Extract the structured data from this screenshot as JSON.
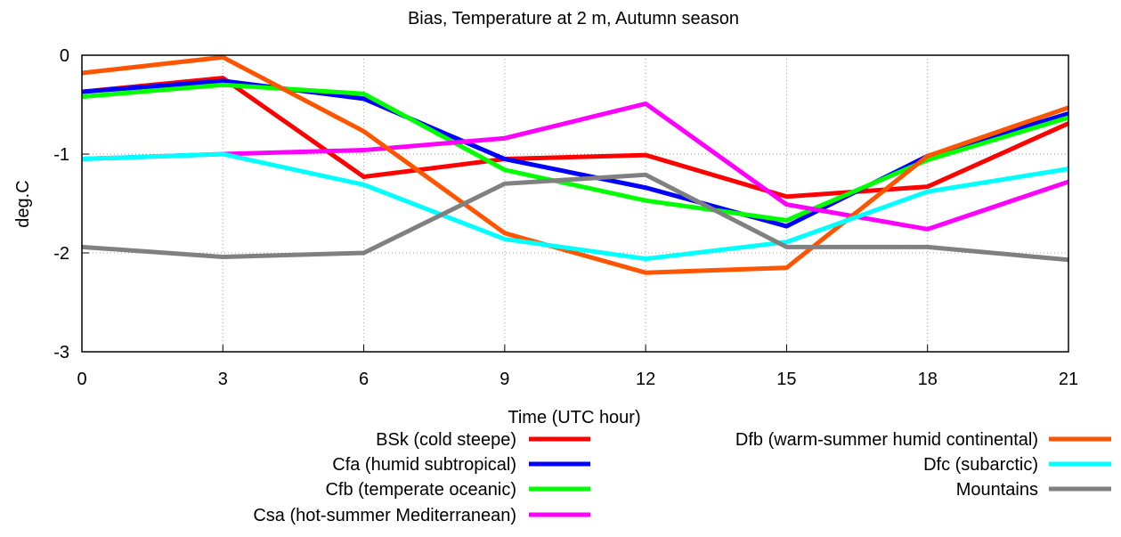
{
  "chart_data": {
    "type": "line",
    "title": "Bias, Temperature at 2 m, Autumn season",
    "xlabel": "Time (UTC hour)",
    "ylabel": "deg.C",
    "x": [
      0,
      3,
      6,
      9,
      12,
      15,
      18,
      21
    ],
    "xlim": [
      0,
      21
    ],
    "ylim": [
      -3,
      0
    ],
    "xticks": [
      "0",
      "3",
      "6",
      "9",
      "12",
      "15",
      "18",
      "21"
    ],
    "yticks": [
      "-3",
      "-2",
      "-1",
      "0"
    ],
    "grid": true,
    "legend_position": "bottom",
    "series": [
      {
        "name": "BSk (cold steepe)",
        "color": "#ff0000",
        "values": [
          -0.37,
          -0.23,
          -1.23,
          -1.05,
          -1.01,
          -1.43,
          -1.33,
          -0.69
        ]
      },
      {
        "name": "Cfa (humid subtropical)",
        "color": "#0000ff",
        "values": [
          -0.37,
          -0.26,
          -0.44,
          -1.05,
          -1.34,
          -1.73,
          -1.02,
          -0.59
        ]
      },
      {
        "name": "Cfb (temperate oceanic)",
        "color": "#00ff00",
        "values": [
          -0.42,
          -0.3,
          -0.39,
          -1.16,
          -1.47,
          -1.67,
          -1.06,
          -0.63
        ]
      },
      {
        "name": "Csa (hot-summer Mediterranean)",
        "color": "#ff00ff",
        "values": [
          -1.05,
          -1.0,
          -0.96,
          -0.84,
          -0.49,
          -1.51,
          -1.76,
          -1.28
        ]
      },
      {
        "name": "Dfb (warm-summer humid continental)",
        "color": "#ff5500",
        "values": [
          -0.18,
          -0.02,
          -0.77,
          -1.8,
          -2.2,
          -2.15,
          -1.02,
          -0.53
        ]
      },
      {
        "name": "Dfc (subarctic)",
        "color": "#00ffff",
        "values": [
          -1.05,
          -1.0,
          -1.31,
          -1.86,
          -2.06,
          -1.89,
          -1.38,
          -1.15
        ]
      },
      {
        "name": "Mountains",
        "color": "#808080",
        "values": [
          -1.94,
          -2.04,
          -2.0,
          -1.3,
          -1.21,
          -1.94,
          -1.94,
          -2.07
        ]
      }
    ]
  }
}
